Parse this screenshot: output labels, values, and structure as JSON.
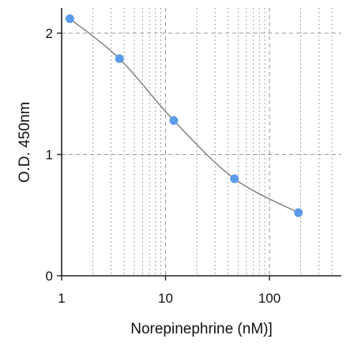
{
  "chart_data": {
    "type": "scatter",
    "xlabel": "Norepinephrine (nM)]",
    "ylabel": "O.D. 450nm",
    "x_scale": "log",
    "xlim": [
      1,
      450
    ],
    "ylim": [
      0,
      2.2
    ],
    "x_ticks": [
      {
        "value": 1,
        "label": "1"
      },
      {
        "value": 10,
        "label": "10"
      },
      {
        "value": 100,
        "label": "100"
      }
    ],
    "y_ticks": [
      {
        "value": 0,
        "label": "0"
      },
      {
        "value": 1,
        "label": "1"
      },
      {
        "value": 2,
        "label": "2"
      }
    ],
    "grid": true,
    "series": [
      {
        "points": [
          {
            "x": 1.2,
            "y": 2.12
          },
          {
            "x": 3.6,
            "y": 1.79
          },
          {
            "x": 12,
            "y": 1.28
          },
          {
            "x": 46,
            "y": 0.8
          },
          {
            "x": 190,
            "y": 0.52
          }
        ],
        "marker_color": "#5b9bea",
        "fit_curve": true,
        "curve_color": "#8a8a8a"
      }
    ],
    "grid_color": "#9a9a9a"
  }
}
